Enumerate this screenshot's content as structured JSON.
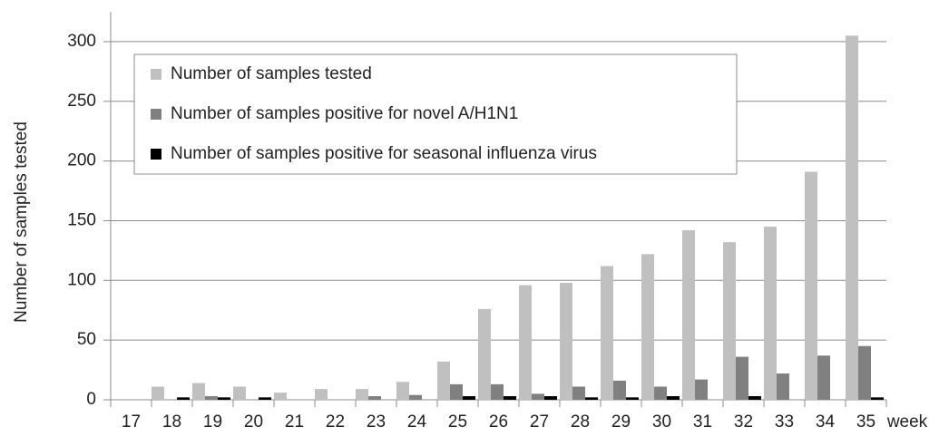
{
  "chart_data": {
    "type": "bar",
    "y_label": "Number of samples tested",
    "x_label": "week",
    "categories": [
      "17",
      "18",
      "19",
      "20",
      "21",
      "22",
      "23",
      "24",
      "25",
      "26",
      "27",
      "28",
      "29",
      "30",
      "31",
      "32",
      "33",
      "34",
      "35"
    ],
    "series": [
      {
        "name": "Number of samples tested",
        "color": "#c0c0c0",
        "values": [
          0,
          11,
          14,
          11,
          6,
          9,
          9,
          15,
          32,
          76,
          96,
          98,
          112,
          122,
          142,
          132,
          145,
          191,
          305
        ]
      },
      {
        "name": "Number of samples positive for novel A/H1N1",
        "color": "#808080",
        "values": [
          0,
          0,
          3,
          0,
          0,
          0,
          3,
          4,
          13,
          13,
          5,
          11,
          16,
          11,
          17,
          36,
          22,
          37,
          45
        ]
      },
      {
        "name": "Number of samples positive for seasonal influenza virus",
        "color": "#000000",
        "values": [
          0,
          2,
          2,
          2,
          0,
          0,
          0,
          0,
          3,
          3,
          3,
          2,
          2,
          3,
          0,
          3,
          0,
          0,
          2
        ]
      }
    ],
    "ylim": [
      0,
      325
    ],
    "yticks": [
      0,
      50,
      100,
      150,
      200,
      250,
      300
    ],
    "grid": true
  }
}
